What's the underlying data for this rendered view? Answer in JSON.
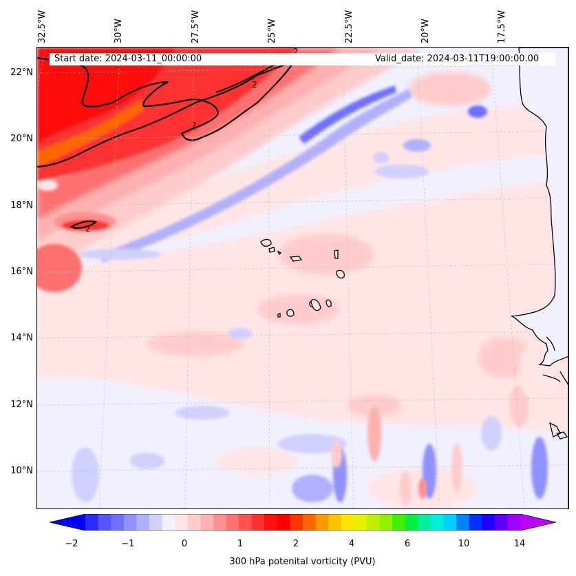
{
  "map": {
    "start_date": "Start date: 2024-03-11_00:00:00",
    "valid_date": "Valid_date: 2024-03-11T19:00:00.00",
    "lon_labels": [
      "32.5°W",
      "30°W",
      "27.5°W",
      "25°W",
      "22.5°W",
      "20°W",
      "17.5°W"
    ],
    "lat_labels": [
      "22°N",
      "20°N",
      "18°N",
      "16°N",
      "14°N",
      "12°N",
      "10°N"
    ],
    "contour_labels": [
      "2",
      "2",
      "2",
      "2"
    ],
    "land_color": "#f0f0ff",
    "coastline_color": "#000000"
  },
  "colorbar": {
    "title": "300 hPa potenital vorticity (PVU)",
    "tick_labels": [
      "−2",
      "−1",
      "0",
      "1",
      "2",
      "4",
      "6",
      "10",
      "14"
    ],
    "colors": [
      "#0000ff",
      "#2a2aff",
      "#5555ff",
      "#7070ff",
      "#9090ff",
      "#b0b0ff",
      "#d0d0ff",
      "#f0f0ff",
      "#ffe5e5",
      "#ffcccc",
      "#ffb0b0",
      "#ff9090",
      "#ff7070",
      "#ff5050",
      "#ff3030",
      "#ff1010",
      "#ff0000",
      "#ff3300",
      "#ff6600",
      "#ff9900",
      "#ffc000",
      "#ffe600",
      "#e6f000",
      "#c0f000",
      "#90f000",
      "#40f000",
      "#00f040",
      "#00f0a0",
      "#00f0e0",
      "#00d0ff",
      "#0080ff",
      "#0030ff",
      "#2000ff",
      "#6000ff",
      "#a000ff",
      "#c000ff"
    ]
  }
}
